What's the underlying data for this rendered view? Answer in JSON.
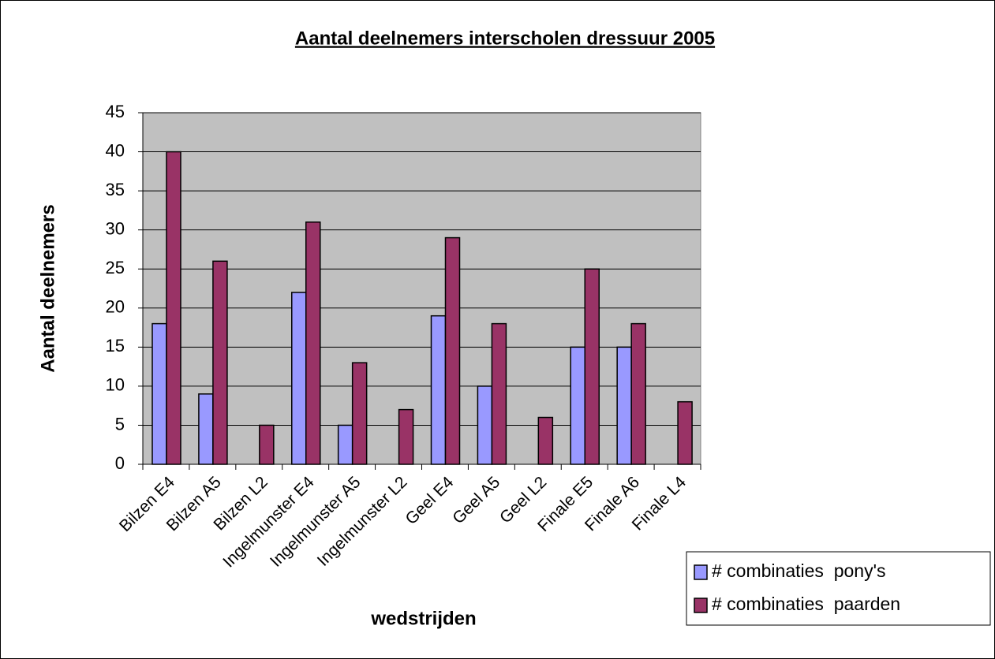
{
  "chart_data": {
    "type": "bar",
    "title": "Aantal deelnemers interscholen dressuur 2005",
    "x_label": "wedstrijden",
    "y_label": "Aantal deelnemers",
    "categories": [
      "Bilzen E4",
      "Bilzen A5",
      "Bilzen L2",
      "Ingelmunster E4",
      "Ingelmunster A5",
      "Ingelmunster L2",
      "Geel E4",
      "Geel A5",
      "Geel L2",
      "Finale E5",
      "Finale A6",
      "Finale L4"
    ],
    "series": [
      {
        "name": "# combinaties  pony's",
        "color": "#9999ff",
        "values": [
          18,
          9,
          0,
          22,
          5,
          0,
          19,
          10,
          0,
          15,
          15,
          0
        ]
      },
      {
        "name": "# combinaties  paarden",
        "color": "#993366",
        "values": [
          40,
          26,
          5,
          31,
          13,
          7,
          29,
          18,
          6,
          25,
          18,
          8
        ]
      }
    ],
    "ylim": [
      0,
      45
    ],
    "yticks": [
      0,
      5,
      10,
      15,
      20,
      25,
      30,
      35,
      40,
      45
    ],
    "grid": true,
    "legend": "bottom-right",
    "plot_background": "#c0c0c0"
  }
}
